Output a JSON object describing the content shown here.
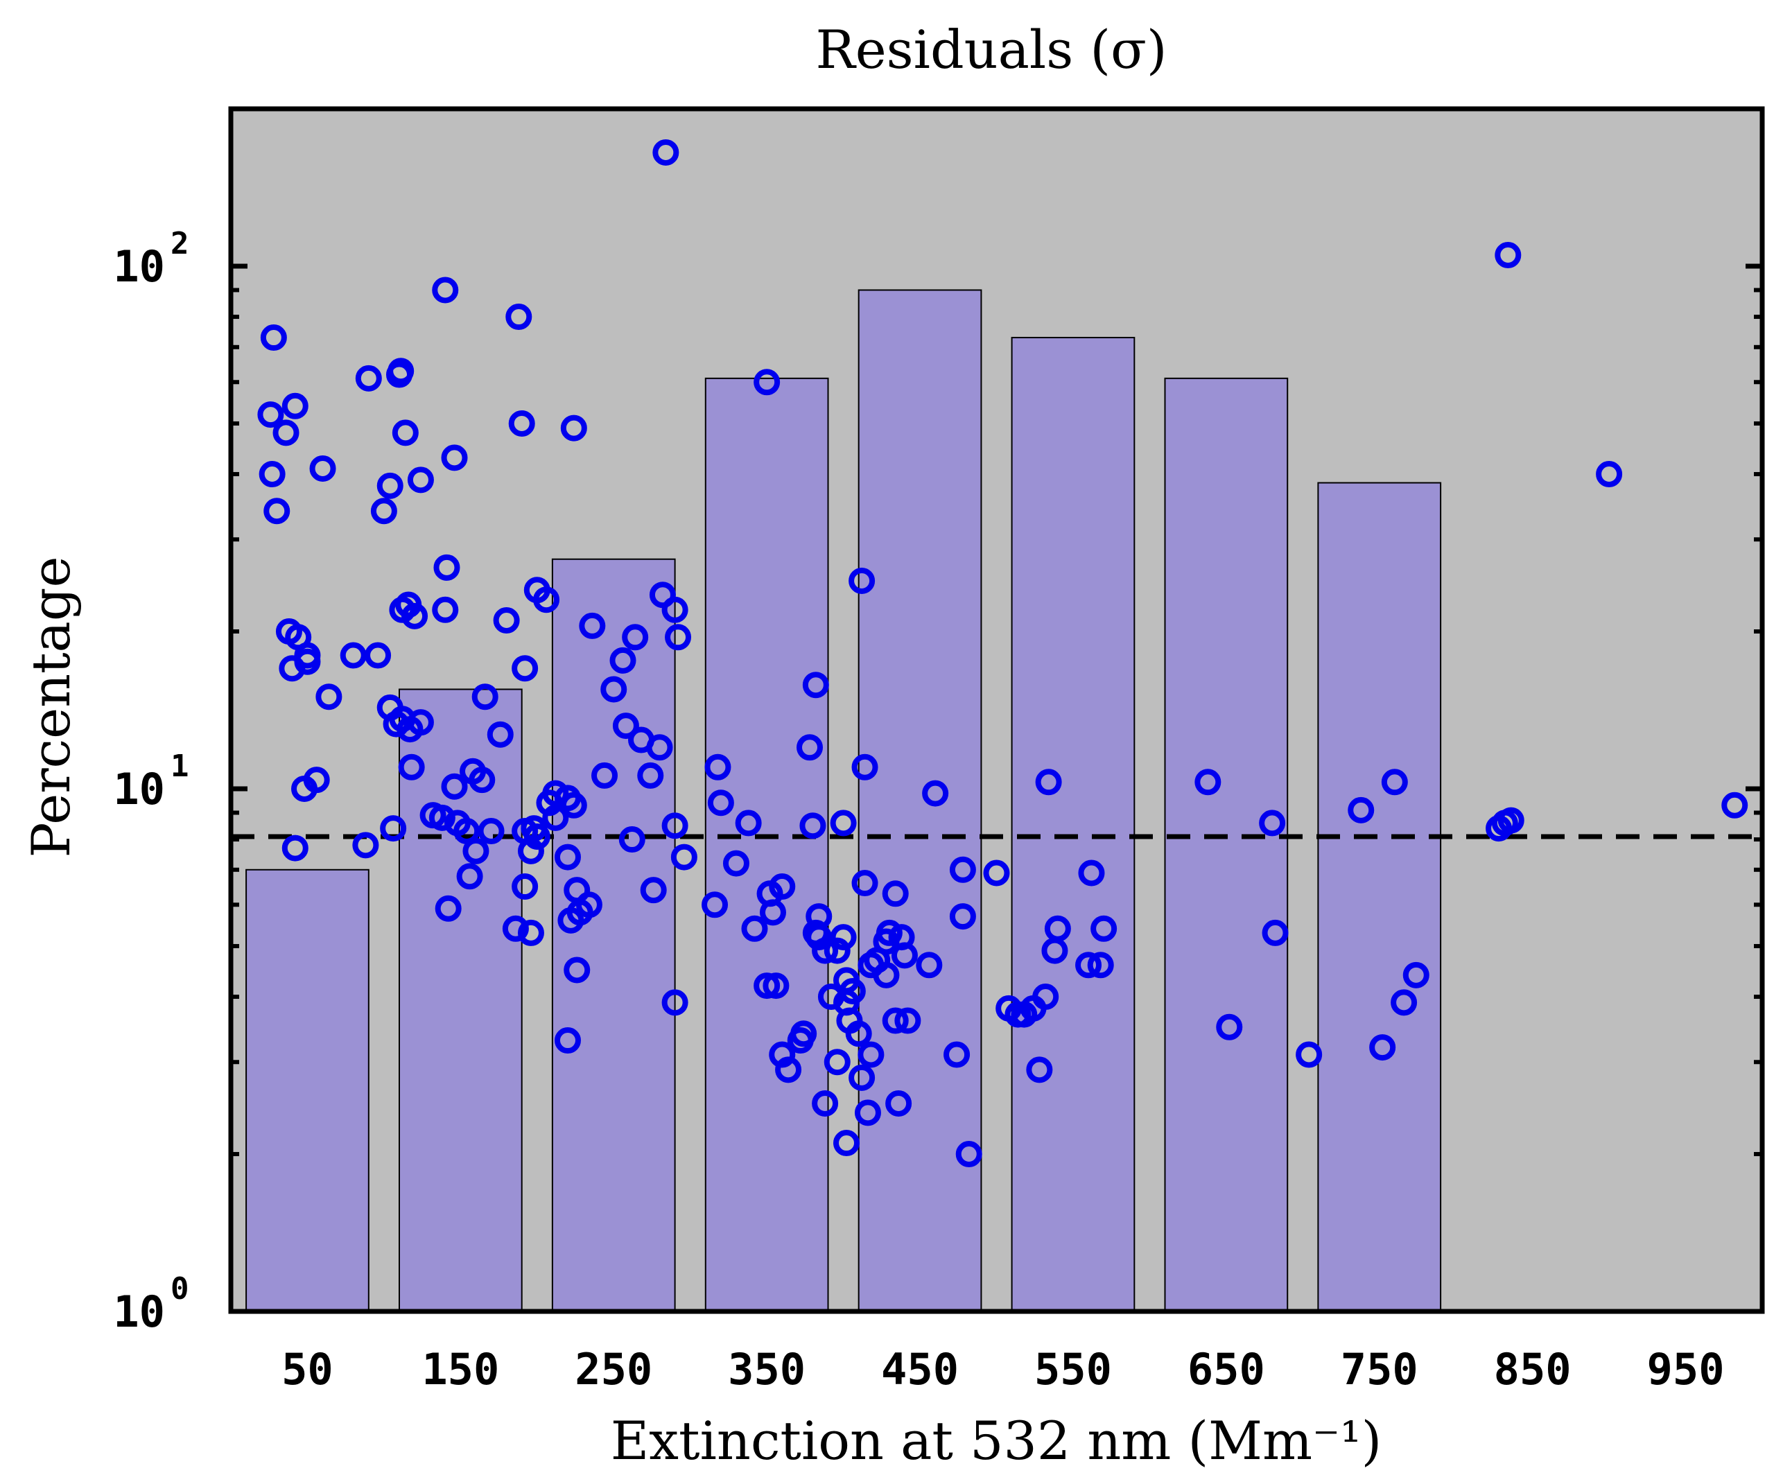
{
  "chart_data": {
    "type": "bar+scatter",
    "title": "Residuals (σ)",
    "xlabel": "Extinction at 532 nm (Mm⁻¹)",
    "ylabel": "Percentage",
    "xlim": [
      0,
      1000
    ],
    "ylim": [
      1,
      200
    ],
    "yscale": "log",
    "x_ticks": [
      "50",
      "150",
      "250",
      "350",
      "450",
      "550",
      "650",
      "750",
      "850",
      "950"
    ],
    "y_ticks": [
      {
        "value": 1,
        "base": "10",
        "exp": "0"
      },
      {
        "value": 10,
        "base": "10",
        "exp": "1"
      },
      {
        "value": 100,
        "base": "10",
        "exp": "2"
      }
    ],
    "reference_line": {
      "y": 8.1,
      "style": "dashed"
    },
    "colors": {
      "background": "#bebebe",
      "bar_fill": "#9b91d4",
      "marker": "#0000ee",
      "line": "#000000"
    },
    "bars": [
      {
        "center": 50,
        "value": 7.0
      },
      {
        "center": 150,
        "value": 15.5
      },
      {
        "center": 250,
        "value": 27.5
      },
      {
        "center": 350,
        "value": 61
      },
      {
        "center": 450,
        "value": 90
      },
      {
        "center": 550,
        "value": 73
      },
      {
        "center": 650,
        "value": 61
      },
      {
        "center": 750,
        "value": 38.5
      }
    ],
    "scatter": [
      [
        28,
        73
      ],
      [
        26,
        52
      ],
      [
        27,
        40
      ],
      [
        30,
        34
      ],
      [
        36,
        48
      ],
      [
        42,
        54
      ],
      [
        40,
        17
      ],
      [
        38,
        20
      ],
      [
        44,
        19.5
      ],
      [
        50,
        17.5
      ],
      [
        50,
        18
      ],
      [
        60,
        41
      ],
      [
        64,
        15
      ],
      [
        48,
        10
      ],
      [
        56,
        10.4
      ],
      [
        42,
        7.7
      ],
      [
        80,
        18
      ],
      [
        96,
        18
      ],
      [
        90,
        61
      ],
      [
        100,
        34
      ],
      [
        104,
        38
      ],
      [
        110,
        62
      ],
      [
        111,
        63
      ],
      [
        114,
        48
      ],
      [
        124,
        39
      ],
      [
        140,
        90
      ],
      [
        146,
        43
      ],
      [
        104,
        14.3
      ],
      [
        108,
        13.3
      ],
      [
        112,
        13.6
      ],
      [
        117,
        13
      ],
      [
        124,
        13.4
      ],
      [
        118,
        11
      ],
      [
        112,
        22
      ],
      [
        116,
        22.5
      ],
      [
        120,
        21.4
      ],
      [
        140,
        22
      ],
      [
        141,
        26.5
      ],
      [
        88,
        7.8
      ],
      [
        106,
        8.4
      ],
      [
        132,
        8.9
      ],
      [
        138,
        8.8
      ],
      [
        146,
        10.1
      ],
      [
        148,
        8.6
      ],
      [
        154,
        8.3
      ],
      [
        158,
        10.8
      ],
      [
        160,
        7.6
      ],
      [
        164,
        10.4
      ],
      [
        170,
        8.3
      ],
      [
        176,
        12.7
      ],
      [
        166,
        15
      ],
      [
        142,
        5.9
      ],
      [
        156,
        6.8
      ],
      [
        180,
        21
      ],
      [
        186,
        5.4
      ],
      [
        196,
        7.6
      ],
      [
        192,
        8.3
      ],
      [
        200,
        8.1
      ],
      [
        198,
        8.4
      ],
      [
        208,
        9.4
      ],
      [
        212,
        8.8
      ],
      [
        188,
        80
      ],
      [
        190,
        50
      ],
      [
        192,
        17
      ],
      [
        200,
        24
      ],
      [
        206,
        23
      ],
      [
        224,
        49
      ],
      [
        192,
        6.5
      ],
      [
        196,
        5.3
      ],
      [
        212,
        9.8
      ],
      [
        220,
        9.6
      ],
      [
        220,
        7.4
      ],
      [
        224,
        9.3
      ],
      [
        226,
        6.4
      ],
      [
        222,
        5.6
      ],
      [
        228,
        5.8
      ],
      [
        234,
        6
      ],
      [
        226,
        4.5
      ],
      [
        220,
        3.3
      ],
      [
        236,
        20.5
      ],
      [
        244,
        10.6
      ],
      [
        250,
        15.5
      ],
      [
        256,
        17.6
      ],
      [
        258,
        13.2
      ],
      [
        264,
        19.5
      ],
      [
        268,
        12.4
      ],
      [
        274,
        10.6
      ],
      [
        262,
        8.0
      ],
      [
        276,
        6.4
      ],
      [
        280,
        12
      ],
      [
        282,
        23.5
      ],
      [
        290,
        22
      ],
      [
        292,
        19.5
      ],
      [
        290,
        8.5
      ],
      [
        296,
        7.4
      ],
      [
        290,
        3.9
      ],
      [
        284,
        165
      ],
      [
        318,
        11
      ],
      [
        320,
        9.4
      ],
      [
        316,
        6
      ],
      [
        330,
        7.2
      ],
      [
        338,
        8.6
      ],
      [
        342,
        5.4
      ],
      [
        350,
        4.2
      ],
      [
        352,
        6.3
      ],
      [
        356,
        4.2
      ],
      [
        354,
        5.8
      ],
      [
        360,
        6.5
      ],
      [
        350,
        60
      ],
      [
        360,
        3.1
      ],
      [
        364,
        2.9
      ],
      [
        372,
        3.3
      ],
      [
        374,
        3.4
      ],
      [
        378,
        12
      ],
      [
        380,
        8.5
      ],
      [
        382,
        5.3
      ],
      [
        382,
        15.8
      ],
      [
        384,
        5.7
      ],
      [
        384,
        5.2
      ],
      [
        388,
        4.9
      ],
      [
        388,
        2.5
      ],
      [
        392,
        4.0
      ],
      [
        396,
        3.0
      ],
      [
        396,
        4.9
      ],
      [
        400,
        8.6
      ],
      [
        400,
        5.2
      ],
      [
        402,
        4.3
      ],
      [
        402,
        3.9
      ],
      [
        404,
        3.6
      ],
      [
        406,
        4.1
      ],
      [
        402,
        2.1
      ],
      [
        410,
        3.4
      ],
      [
        412,
        2.8
      ],
      [
        412,
        25
      ],
      [
        414,
        11
      ],
      [
        414,
        6.6
      ],
      [
        416,
        2.4
      ],
      [
        418,
        4.6
      ],
      [
        418,
        3.1
      ],
      [
        422,
        4.7
      ],
      [
        428,
        5.1
      ],
      [
        428,
        4.4
      ],
      [
        430,
        5.3
      ],
      [
        434,
        3.6
      ],
      [
        434,
        6.3
      ],
      [
        436,
        2.5
      ],
      [
        438,
        5.2
      ],
      [
        440,
        4.8
      ],
      [
        442,
        3.6
      ],
      [
        456,
        4.6
      ],
      [
        460,
        9.8
      ],
      [
        474,
        3.1
      ],
      [
        478,
        5.7
      ],
      [
        478,
        7.0
      ],
      [
        482,
        2.0
      ],
      [
        500,
        6.9
      ],
      [
        508,
        3.8
      ],
      [
        514,
        3.7
      ],
      [
        518,
        3.7
      ],
      [
        524,
        3.8
      ],
      [
        528,
        2.9
      ],
      [
        532,
        4.0
      ],
      [
        534,
        10.3
      ],
      [
        538,
        4.9
      ],
      [
        540,
        5.4
      ],
      [
        560,
        4.6
      ],
      [
        562,
        6.9
      ],
      [
        568,
        4.6
      ],
      [
        570,
        5.4
      ],
      [
        638,
        10.3
      ],
      [
        652,
        3.5
      ],
      [
        680,
        8.6
      ],
      [
        682,
        5.3
      ],
      [
        704,
        3.1
      ],
      [
        738,
        9.1
      ],
      [
        752,
        3.2
      ],
      [
        760,
        10.3
      ],
      [
        766,
        3.9
      ],
      [
        774,
        4.4
      ],
      [
        828,
        8.4
      ],
      [
        832,
        8.6
      ],
      [
        836,
        8.7
      ],
      [
        834,
        105
      ],
      [
        900,
        40
      ],
      [
        982,
        9.3
      ]
    ]
  }
}
